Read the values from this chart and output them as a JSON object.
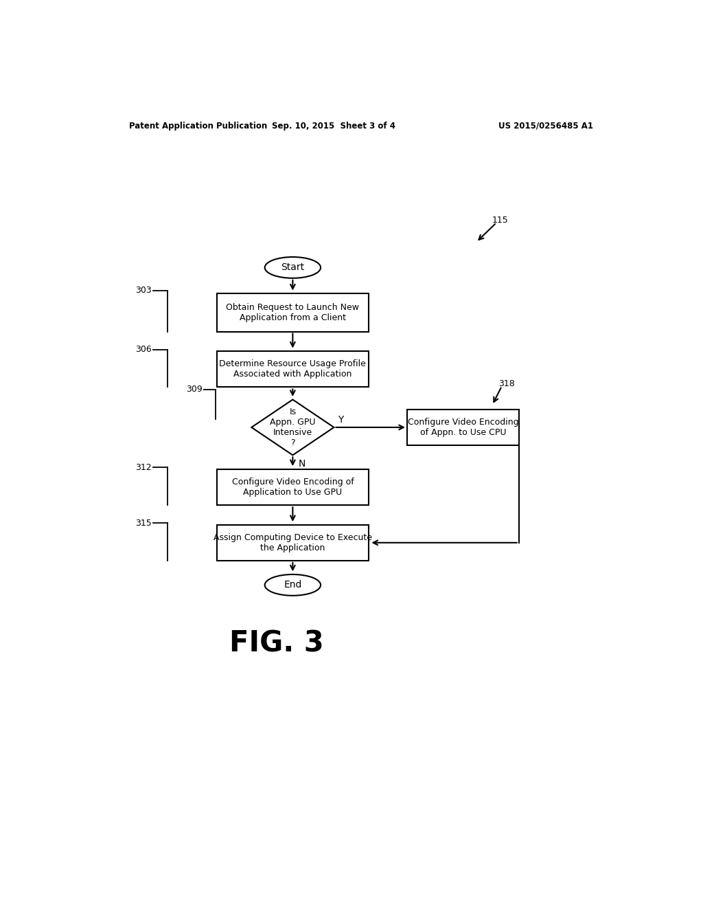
{
  "bg_color": "#ffffff",
  "text_color": "#000000",
  "header_left": "Patent Application Publication",
  "header_center": "Sep. 10, 2015  Sheet 3 of 4",
  "header_right": "US 2015/0256485 A1",
  "fig_label": "FIG. 3",
  "ref_115": "115",
  "ref_303": "303",
  "ref_306": "306",
  "ref_309": "309",
  "ref_312": "312",
  "ref_315": "315",
  "ref_318": "318",
  "start_text": "Start",
  "end_text": "End",
  "box1_text": "Obtain Request to Launch New\nApplication from a Client",
  "box2_text": "Determine Resource Usage Profile\nAssociated with Application",
  "diamond_text": "Is\nAppn. GPU\nIntensive\n?",
  "box3_text": "Configure Video Encoding of\nApplication to Use GPU",
  "box4_text": "Assign Computing Device to Execute\nthe Application",
  "box_right_text": "Configure Video Encoding\nof Appn. to Use CPU",
  "yes_label": "Y",
  "no_label": "N"
}
